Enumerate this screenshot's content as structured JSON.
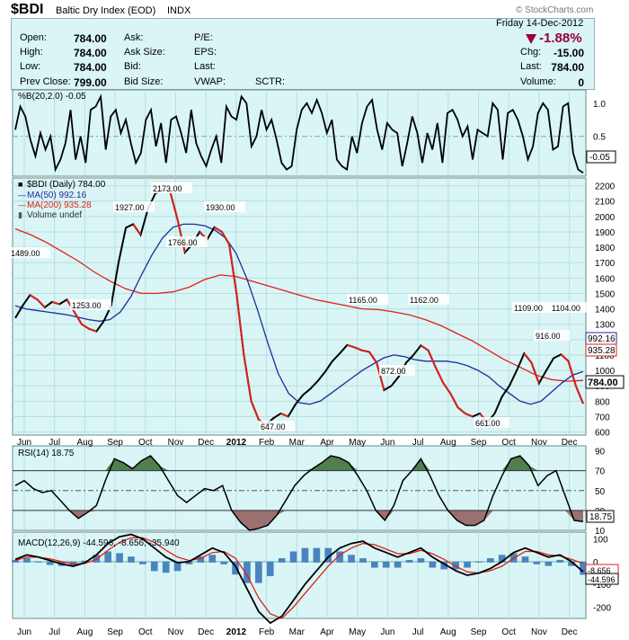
{
  "header": {
    "symbol": "$BDI",
    "name": "Baltic Dry Index (EOD)",
    "exchange": "INDX",
    "copyright": "© StockCharts.com",
    "date": "Friday  14-Dec-2012",
    "change_pct": "-1.88%",
    "fields_left": [
      {
        "label": "Open:",
        "value": "784.00"
      },
      {
        "label": "High:",
        "value": "784.00"
      },
      {
        "label": "Low:",
        "value": "784.00"
      },
      {
        "label": "Prev Close:",
        "value": "799.00"
      }
    ],
    "fields_mid": [
      "Ask:",
      "Ask Size:",
      "Bid:",
      "Bid Size:"
    ],
    "fields_mid2": [
      "P/E:",
      "EPS:",
      "Last:",
      "VWAP:"
    ],
    "sctr": "SCTR:",
    "fields_right": [
      {
        "label": "Chg:",
        "value": "-15.00"
      },
      {
        "label": "Last:",
        "value": "784.00"
      },
      {
        "label": "Volume:",
        "value": "0"
      }
    ]
  },
  "colors": {
    "panel_bg": "#d9f5f5",
    "price_line": "#000000",
    "ma50": "#1f2aa0",
    "ma200": "#e0201b",
    "rsi_high_fill": "#4f7f4f",
    "rsi_low_fill": "#9a7070",
    "macd_hist": "#4a84c0",
    "down_arrow": "#990033"
  },
  "x_axis_labels": [
    "Jun",
    "Jul",
    "Aug",
    "Sep",
    "Oct",
    "Nov",
    "Dec",
    "2012",
    "Feb",
    "Mar",
    "Apr",
    "May",
    "Jun",
    "Jul",
    "Aug",
    "Sep",
    "Oct",
    "Nov",
    "Dec"
  ],
  "chart_data": [
    {
      "type": "line",
      "panel": "percent_b",
      "title": "%B(20,2.0) -0.05",
      "ylim": [
        -0.1,
        1.2
      ],
      "y_ticks": [
        "1.0",
        "0.5",
        "-0.05"
      ],
      "series": [
        {
          "name": "%B(20,2.0)",
          "values": [
            0.6,
            0.95,
            0.8,
            0.45,
            0.2,
            0.55,
            0.3,
            0.5,
            0.0,
            0.15,
            0.4,
            0.9,
            0.15,
            0.5,
            0.1,
            0.9,
            0.95,
            1.1,
            0.3,
            0.8,
            0.9,
            0.55,
            0.75,
            0.4,
            0.1,
            0.25,
            0.75,
            0.9,
            0.35,
            0.7,
            0.1,
            0.75,
            0.8,
            0.55,
            0.25,
            0.9,
            0.4,
            0.2,
            0.05,
            0.3,
            0.5,
            0.1,
            0.95,
            0.8,
            0.75,
            1.1,
            1.0,
            0.35,
            0.5,
            0.9,
            0.6,
            0.75,
            0.45,
            0.1,
            0.0,
            0.05,
            0.6,
            0.9,
            1.0,
            0.85,
            1.05,
            0.85,
            0.55,
            0.75,
            0.15,
            0.05,
            0.0,
            0.5,
            0.25,
            0.7,
            0.95,
            1.05,
            0.6,
            0.3,
            0.7,
            0.6,
            0.55,
            0.05,
            0.4,
            0.8,
            0.55,
            0.1,
            0.55,
            0.3,
            0.7,
            0.1,
            0.85,
            0.9,
            0.75,
            0.5,
            0.65,
            0.15,
            0.6,
            0.55,
            0.5,
            1.0,
            0.9,
            0.15,
            0.85,
            0.9,
            0.75,
            0.5,
            0.15,
            0.35,
            0.85,
            1.0,
            0.9,
            0.3,
            0.35,
            0.95,
            1.0,
            0.25,
            0.0,
            -0.05
          ]
        }
      ]
    },
    {
      "type": "line",
      "panel": "price",
      "title": "$BDI (Daily) 784.00",
      "legend": [
        "$BDI (Daily) 784.00",
        "MA(50) 992.16",
        "MA(200) 935.28",
        "Volume undef"
      ],
      "ylim": [
        580,
        2250
      ],
      "y_ticks": [
        "2200",
        "2100",
        "2000",
        "1900",
        "1800",
        "1700",
        "1600",
        "1500",
        "1400",
        "1300",
        "1200",
        "1100",
        "1000",
        "900",
        "800",
        "700",
        "600"
      ],
      "last_value_labels": [
        "992.16",
        "935.28",
        "784.00"
      ],
      "series": [
        {
          "name": "$BDI (Daily)",
          "values": [
            1340,
            1420,
            1489,
            1460,
            1410,
            1445,
            1430,
            1460,
            1380,
            1300,
            1270,
            1253,
            1320,
            1420,
            1700,
            1927,
            1950,
            1880,
            2050,
            2150,
            2173,
            2160,
            1980,
            1766,
            1820,
            1900,
            1850,
            1930,
            1900,
            1820,
            1500,
            1100,
            800,
            680,
            647,
            690,
            720,
            700,
            780,
            840,
            880,
            930,
            990,
            1060,
            1110,
            1165,
            1150,
            1130,
            1120,
            1050,
            872,
            900,
            960,
            1050,
            1100,
            1162,
            1130,
            1020,
            920,
            850,
            760,
            720,
            700,
            720,
            661,
            720,
            830,
            900,
            1000,
            1110,
            1050,
            916,
            1000,
            1080,
            1104,
            1060,
            900,
            784
          ]
        },
        {
          "name": "MA(50)",
          "values": [
            1420,
            1400,
            1390,
            1380,
            1370,
            1360,
            1345,
            1330,
            1320,
            1330,
            1380,
            1480,
            1620,
            1750,
            1860,
            1930,
            1950,
            1950,
            1940,
            1910,
            1860,
            1760,
            1600,
            1400,
            1180,
            980,
            850,
            790,
            780,
            800,
            850,
            900,
            950,
            1000,
            1040,
            1080,
            1100,
            1090,
            1070,
            1060,
            1060,
            1060,
            1050,
            1030,
            1000,
            960,
            900,
            850,
            800,
            780,
            800,
            860,
            920,
            970,
            992
          ]
        },
        {
          "name": "MA(200)",
          "values": [
            1920,
            1880,
            1830,
            1770,
            1710,
            1640,
            1580,
            1530,
            1500,
            1500,
            1510,
            1540,
            1590,
            1620,
            1610,
            1580,
            1550,
            1520,
            1490,
            1460,
            1440,
            1420,
            1400,
            1395,
            1380,
            1360,
            1330,
            1290,
            1240,
            1190,
            1130,
            1070,
            1020,
            970,
            940,
            930,
            935
          ]
        }
      ],
      "annotations": [
        "1489.00",
        "1253.00",
        "1927.00",
        "2173.00",
        "1766.00",
        "1930.00",
        "647.00",
        "1165.00",
        "872.00",
        "1162.00",
        "661.00",
        "1109.00",
        "1104.00",
        "916.00"
      ]
    },
    {
      "type": "line",
      "panel": "rsi",
      "title": "RSI(14) 18.75",
      "ylim": [
        10,
        95
      ],
      "y_ticks": [
        "90",
        "70",
        "50",
        "30",
        "10"
      ],
      "last_value": "18.75",
      "series": [
        {
          "name": "RSI(14)",
          "values": [
            55,
            60,
            52,
            48,
            50,
            40,
            30,
            22,
            28,
            35,
            60,
            82,
            78,
            72,
            80,
            85,
            75,
            60,
            45,
            38,
            45,
            52,
            50,
            55,
            30,
            18,
            10,
            12,
            15,
            25,
            40,
            55,
            65,
            72,
            78,
            85,
            83,
            78,
            65,
            50,
            30,
            20,
            35,
            60,
            70,
            82,
            65,
            45,
            30,
            20,
            15,
            15,
            20,
            45,
            65,
            82,
            85,
            75,
            55,
            65,
            70,
            45,
            20,
            18.75
          ]
        }
      ]
    },
    {
      "type": "line",
      "panel": "macd",
      "title": "MACD(12,26,9) -44.596, -8.656, -35.940",
      "ylim": [
        -250,
        130
      ],
      "y_ticks": [
        "100",
        "0",
        "-100",
        "-200"
      ],
      "last_values": [
        "-8.656",
        "-44.596"
      ],
      "series": [
        {
          "name": "MACD(12,26,9)",
          "values": [
            10,
            30,
            20,
            5,
            -10,
            -20,
            -5,
            30,
            80,
            110,
            120,
            100,
            60,
            20,
            -5,
            0,
            30,
            60,
            40,
            -20,
            -120,
            -220,
            -270,
            -240,
            -170,
            -100,
            -40,
            20,
            60,
            80,
            90,
            60,
            40,
            20,
            40,
            60,
            20,
            -10,
            -40,
            -60,
            -50,
            -30,
            0,
            40,
            60,
            40,
            20,
            30,
            0,
            -44.596
          ]
        },
        {
          "name": "Signal",
          "values": [
            5,
            20,
            20,
            12,
            0,
            -10,
            -8,
            10,
            50,
            85,
            105,
            105,
            85,
            50,
            20,
            5,
            15,
            40,
            45,
            15,
            -60,
            -160,
            -230,
            -250,
            -200,
            -140,
            -80,
            -20,
            30,
            60,
            80,
            75,
            55,
            35,
            35,
            50,
            35,
            10,
            -20,
            -45,
            -50,
            -40,
            -20,
            15,
            45,
            45,
            30,
            25,
            10,
            -8.656
          ]
        }
      ]
    }
  ]
}
